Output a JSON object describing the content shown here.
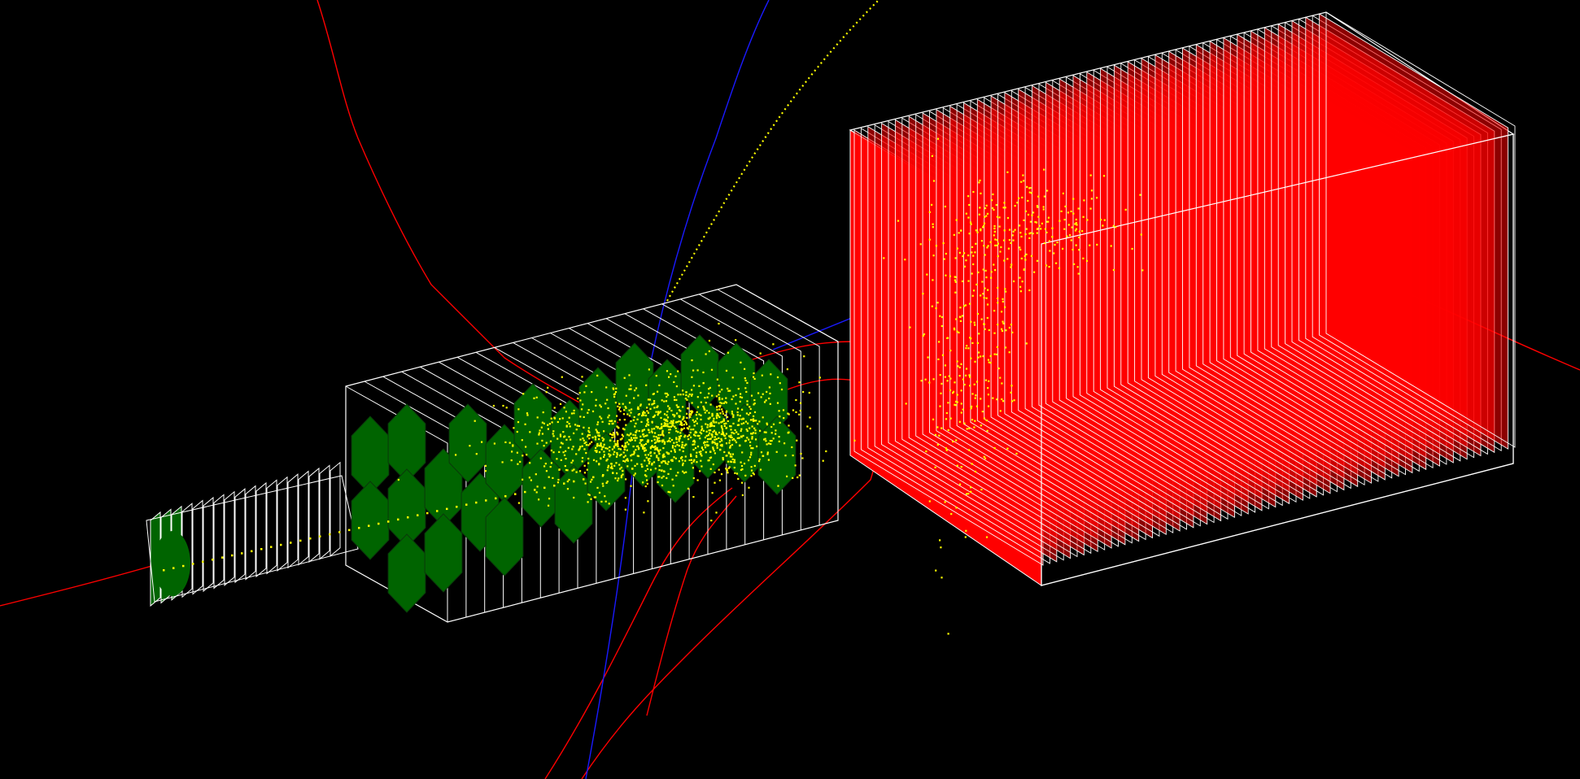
{
  "scene": {
    "background": "#000000",
    "colors": {
      "frame": "#ffffff",
      "module": "#006400",
      "hit": "#ffff00",
      "track_charged_neg": "#ff0000",
      "track_charged_pos": "#0000ff",
      "calorimeter_fill": "#ff0000"
    },
    "components": [
      {
        "name": "beam-pipe-stack",
        "icon": "cylinder-icon"
      },
      {
        "name": "silicon-tracker-box",
        "icon": "hexagon-icon"
      },
      {
        "name": "hadron-calorimeter-box",
        "icon": "box-icon"
      }
    ]
  }
}
